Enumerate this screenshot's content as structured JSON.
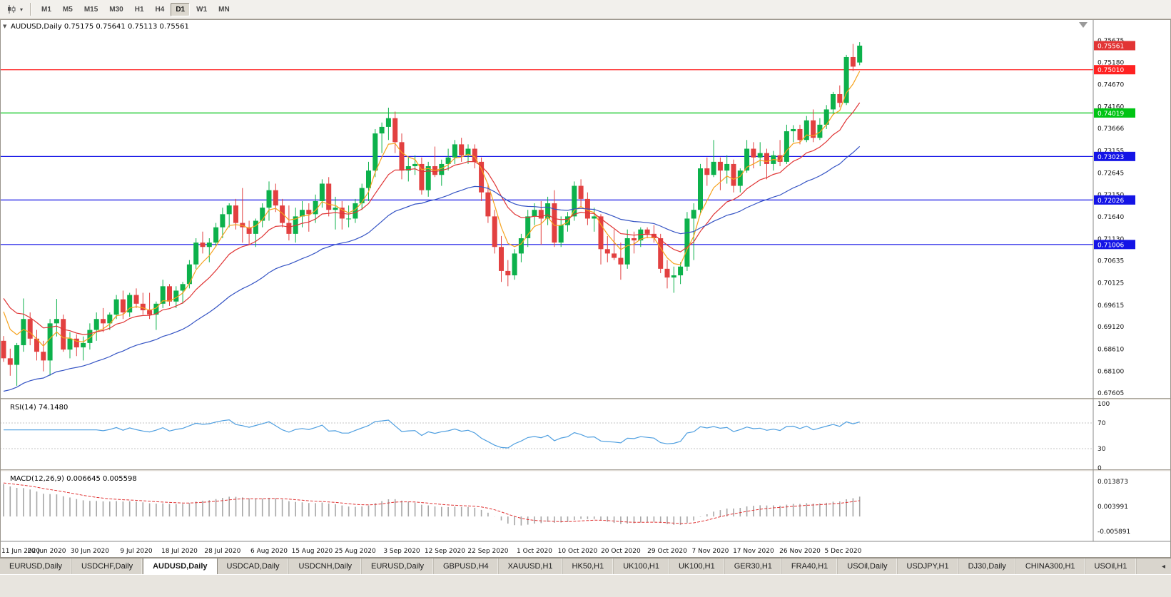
{
  "icons": {
    "caret": "▾",
    "tab_scroll_left": "◂",
    "window_caret": "▼"
  },
  "toolbar": {
    "timeframes": [
      "M1",
      "M5",
      "M15",
      "M30",
      "H1",
      "H4",
      "D1",
      "W1",
      "MN"
    ],
    "active_timeframe": "D1"
  },
  "chart_data": {
    "type": "candlestick",
    "symbol": "AUDUSD",
    "timeframe": "Daily",
    "ohlc": {
      "open": "0.75175",
      "high": "0.75641",
      "low": "0.75113",
      "close": "0.75561"
    },
    "colors": {
      "background": "#ffffff",
      "candle_up": "#0cb14b",
      "candle_down": "#e24040",
      "ma_fast": "#f6a21c",
      "ma_mid": "#e03535",
      "ma_slow": "#3453c4"
    },
    "price_range": {
      "top": 0.76149,
      "bottom": 0.67523
    },
    "price_axis": [
      "0.75675",
      "0.75180",
      "0.74670",
      "0.74160",
      "0.73666",
      "0.73155",
      "0.72645",
      "0.72150",
      "0.71640",
      "0.71130",
      "0.70635",
      "0.70125",
      "0.69615",
      "0.69120",
      "0.68610",
      "0.68100",
      "0.67605"
    ],
    "current_price": {
      "label": "0.75561",
      "value": 0.75561,
      "color": "#e23535"
    },
    "hlines": [
      {
        "label": "0.75010",
        "value": 0.7501,
        "color": "#ff2222"
      },
      {
        "label": "0.74019",
        "value": 0.74019,
        "color": "#00c414"
      },
      {
        "label": "0.73023",
        "value": 0.73023,
        "color": "#1414e6"
      },
      {
        "label": "0.72026",
        "value": 0.72026,
        "color": "#1414e6"
      },
      {
        "label": "0.71006",
        "value": 0.71006,
        "color": "#1414e6"
      }
    ],
    "moving_averages": [
      {
        "name": "fast",
        "period": 5,
        "color": "#f6a21c",
        "seed": 0.7
      },
      {
        "name": "medium",
        "period": 13,
        "color": "#e03535",
        "seed": 0.7
      },
      {
        "name": "slow",
        "period": 34,
        "color": "#3453c4",
        "seed": 0.676
      }
    ],
    "rsi": {
      "label": "RSI(14)",
      "value": "74.1480",
      "period": 14,
      "color": "#4f9fe0",
      "levels": [
        {
          "label": "100",
          "value": 100
        },
        {
          "label": "70",
          "value": 70
        },
        {
          "label": "30",
          "value": 30
        },
        {
          "label": "0",
          "value": 0
        }
      ],
      "dashed_levels": [
        70,
        30
      ]
    },
    "macd": {
      "label": "MACD(12,26,9)",
      "values": "0.006645 0.005598",
      "fast": 12,
      "slow": 26,
      "signal_period": 9,
      "fast_seed_offset": -0.0012,
      "slow_seed_offset": -0.015,
      "hist_color": "#a6a6a6",
      "signal_color": "#e03535",
      "scale_labels": [
        {
          "label": "0.013873",
          "value": 0.013873
        },
        {
          "label": "0.003991",
          "value": 0.003991
        },
        {
          "label": "-0.005891",
          "value": -0.005891
        }
      ]
    },
    "x_labels": [
      [
        "11 Jun 2020",
        0
      ],
      [
        "20 Jun 2020",
        6.5
      ],
      [
        "30 Jun 2020",
        13
      ],
      [
        "9 Jul 2020",
        20
      ],
      [
        "18 Jul 2020",
        26.5
      ],
      [
        "28 Jul 2020",
        33
      ],
      [
        "6 Aug 2020",
        40
      ],
      [
        "15 Aug 2020",
        46.5
      ],
      [
        "25 Aug 2020",
        53
      ],
      [
        "3 Sep 2020",
        60
      ],
      [
        "12 Sep 2020",
        66.5
      ],
      [
        "22 Sep 2020",
        73
      ],
      [
        "1 Oct 2020",
        80
      ],
      [
        "10 Oct 2020",
        86.5
      ],
      [
        "20 Oct 2020",
        93
      ],
      [
        "29 Oct 2020",
        100
      ],
      [
        "7 Nov 2020",
        106.5
      ],
      [
        "17 Nov 2020",
        113
      ],
      [
        "26 Nov 2020",
        120
      ],
      [
        "5 Dec 2020",
        126.5
      ]
    ],
    "candles": [
      [
        0.688,
        0.6891,
        0.6832,
        0.684
      ],
      [
        0.684,
        0.6862,
        0.68,
        0.6825
      ],
      [
        0.6825,
        0.6875,
        0.6777,
        0.687
      ],
      [
        0.687,
        0.6977,
        0.6855,
        0.693
      ],
      [
        0.693,
        0.6945,
        0.687,
        0.6885
      ],
      [
        0.6885,
        0.6905,
        0.6835,
        0.6855
      ],
      [
        0.6855,
        0.688,
        0.681,
        0.6835
      ],
      [
        0.6835,
        0.693,
        0.68,
        0.692
      ],
      [
        0.692,
        0.6976,
        0.689,
        0.693
      ],
      [
        0.693,
        0.694,
        0.6855,
        0.686
      ],
      [
        0.686,
        0.69,
        0.684,
        0.6885
      ],
      [
        0.6885,
        0.6895,
        0.6845,
        0.6865
      ],
      [
        0.6865,
        0.689,
        0.6835,
        0.6875
      ],
      [
        0.6875,
        0.692,
        0.686,
        0.6905
      ],
      [
        0.6905,
        0.6945,
        0.688,
        0.693
      ],
      [
        0.693,
        0.6955,
        0.69,
        0.692
      ],
      [
        0.692,
        0.6945,
        0.6905,
        0.694
      ],
      [
        0.694,
        0.6985,
        0.693,
        0.6975
      ],
      [
        0.6975,
        0.6995,
        0.693,
        0.6945
      ],
      [
        0.6945,
        0.699,
        0.6935,
        0.6985
      ],
      [
        0.6985,
        0.7,
        0.6955,
        0.6965
      ],
      [
        0.6965,
        0.699,
        0.694,
        0.695
      ],
      [
        0.695,
        0.699,
        0.693,
        0.694
      ],
      [
        0.694,
        0.697,
        0.6905,
        0.6965
      ],
      [
        0.6965,
        0.702,
        0.6955,
        0.7005
      ],
      [
        0.7005,
        0.701,
        0.696,
        0.697
      ],
      [
        0.697,
        0.7005,
        0.6955,
        0.6995
      ],
      [
        0.6995,
        0.7015,
        0.6965,
        0.701
      ],
      [
        0.701,
        0.7065,
        0.7,
        0.7055
      ],
      [
        0.7055,
        0.7115,
        0.7045,
        0.7105
      ],
      [
        0.7105,
        0.713,
        0.708,
        0.7095
      ],
      [
        0.7095,
        0.7115,
        0.706,
        0.7105
      ],
      [
        0.7105,
        0.715,
        0.7095,
        0.714
      ],
      [
        0.714,
        0.7185,
        0.7115,
        0.717
      ],
      [
        0.717,
        0.7195,
        0.714,
        0.719
      ],
      [
        0.719,
        0.7205,
        0.7135,
        0.715
      ],
      [
        0.715,
        0.723,
        0.7105,
        0.714
      ],
      [
        0.714,
        0.7155,
        0.71,
        0.7125
      ],
      [
        0.7125,
        0.716,
        0.7095,
        0.7155
      ],
      [
        0.7155,
        0.7195,
        0.714,
        0.7185
      ],
      [
        0.7185,
        0.7245,
        0.7155,
        0.7225
      ],
      [
        0.7225,
        0.724,
        0.7175,
        0.719
      ],
      [
        0.719,
        0.7205,
        0.714,
        0.715
      ],
      [
        0.715,
        0.719,
        0.711,
        0.7125
      ],
      [
        0.7125,
        0.7185,
        0.7105,
        0.7165
      ],
      [
        0.7165,
        0.72,
        0.714,
        0.718
      ],
      [
        0.718,
        0.7195,
        0.713,
        0.717
      ],
      [
        0.717,
        0.7215,
        0.715,
        0.72
      ],
      [
        0.72,
        0.725,
        0.7185,
        0.724
      ],
      [
        0.724,
        0.7255,
        0.7165,
        0.718
      ],
      [
        0.718,
        0.721,
        0.7135,
        0.7185
      ],
      [
        0.7185,
        0.72,
        0.7135,
        0.716
      ],
      [
        0.716,
        0.719,
        0.714,
        0.716
      ],
      [
        0.716,
        0.7205,
        0.715,
        0.7195
      ],
      [
        0.7195,
        0.724,
        0.718,
        0.723
      ],
      [
        0.723,
        0.729,
        0.72,
        0.727
      ],
      [
        0.727,
        0.7365,
        0.7255,
        0.7355
      ],
      [
        0.7355,
        0.738,
        0.731,
        0.737
      ],
      [
        0.737,
        0.7414,
        0.734,
        0.739
      ],
      [
        0.739,
        0.7405,
        0.731,
        0.7335
      ],
      [
        0.7335,
        0.7355,
        0.725,
        0.727
      ],
      [
        0.727,
        0.73,
        0.7245,
        0.728
      ],
      [
        0.728,
        0.7305,
        0.726,
        0.7285
      ],
      [
        0.7285,
        0.73,
        0.7215,
        0.7225
      ],
      [
        0.7225,
        0.729,
        0.721,
        0.728
      ],
      [
        0.728,
        0.7325,
        0.7255,
        0.726
      ],
      [
        0.726,
        0.7295,
        0.7235,
        0.7285
      ],
      [
        0.7285,
        0.732,
        0.727,
        0.73
      ],
      [
        0.73,
        0.734,
        0.7285,
        0.733
      ],
      [
        0.733,
        0.7345,
        0.729,
        0.7305
      ],
      [
        0.7305,
        0.733,
        0.7285,
        0.732
      ],
      [
        0.732,
        0.733,
        0.7275,
        0.729
      ],
      [
        0.729,
        0.73,
        0.72,
        0.722
      ],
      [
        0.722,
        0.724,
        0.715,
        0.7165
      ],
      [
        0.7165,
        0.718,
        0.708,
        0.7095
      ],
      [
        0.7095,
        0.712,
        0.7015,
        0.704
      ],
      [
        0.704,
        0.7065,
        0.7005,
        0.703
      ],
      [
        0.703,
        0.709,
        0.702,
        0.708
      ],
      [
        0.708,
        0.7125,
        0.706,
        0.7115
      ],
      [
        0.7115,
        0.718,
        0.7095,
        0.7165
      ],
      [
        0.7165,
        0.7195,
        0.7145,
        0.718
      ],
      [
        0.718,
        0.72,
        0.71,
        0.716
      ],
      [
        0.716,
        0.721,
        0.7145,
        0.7195
      ],
      [
        0.7195,
        0.7225,
        0.7095,
        0.7105
      ],
      [
        0.7105,
        0.7165,
        0.7095,
        0.7145
      ],
      [
        0.7145,
        0.7175,
        0.713,
        0.7165
      ],
      [
        0.7165,
        0.7245,
        0.7155,
        0.7235
      ],
      [
        0.7235,
        0.725,
        0.7185,
        0.7205
      ],
      [
        0.7205,
        0.722,
        0.7145,
        0.716
      ],
      [
        0.716,
        0.7185,
        0.713,
        0.7165
      ],
      [
        0.7165,
        0.717,
        0.7055,
        0.709
      ],
      [
        0.709,
        0.712,
        0.706,
        0.708
      ],
      [
        0.708,
        0.7135,
        0.7065,
        0.707
      ],
      [
        0.707,
        0.7105,
        0.702,
        0.7055
      ],
      [
        0.7055,
        0.7135,
        0.7045,
        0.7115
      ],
      [
        0.7115,
        0.713,
        0.708,
        0.711
      ],
      [
        0.711,
        0.714,
        0.7095,
        0.7135
      ],
      [
        0.7135,
        0.714,
        0.7115,
        0.7125
      ],
      [
        0.7125,
        0.7145,
        0.7105,
        0.7115
      ],
      [
        0.7115,
        0.7125,
        0.7035,
        0.7045
      ],
      [
        0.7045,
        0.7065,
        0.7,
        0.7025
      ],
      [
        0.7025,
        0.705,
        0.699,
        0.703
      ],
      [
        0.703,
        0.706,
        0.701,
        0.705
      ],
      [
        0.705,
        0.7175,
        0.704,
        0.716
      ],
      [
        0.716,
        0.7195,
        0.7065,
        0.718
      ],
      [
        0.718,
        0.7285,
        0.717,
        0.7275
      ],
      [
        0.7275,
        0.73,
        0.7235,
        0.726
      ],
      [
        0.726,
        0.734,
        0.7255,
        0.729
      ],
      [
        0.729,
        0.73,
        0.7225,
        0.727
      ],
      [
        0.727,
        0.7305,
        0.724,
        0.7285
      ],
      [
        0.7285,
        0.7295,
        0.722,
        0.7235
      ],
      [
        0.7235,
        0.7275,
        0.722,
        0.727
      ],
      [
        0.727,
        0.734,
        0.7265,
        0.732
      ],
      [
        0.732,
        0.7335,
        0.7275,
        0.73
      ],
      [
        0.73,
        0.7335,
        0.728,
        0.731
      ],
      [
        0.731,
        0.732,
        0.725,
        0.7285
      ],
      [
        0.7285,
        0.7315,
        0.727,
        0.7305
      ],
      [
        0.7305,
        0.734,
        0.728,
        0.729
      ],
      [
        0.729,
        0.7375,
        0.7285,
        0.736
      ],
      [
        0.736,
        0.7374,
        0.7335,
        0.7365
      ],
      [
        0.7365,
        0.7375,
        0.733,
        0.734
      ],
      [
        0.734,
        0.7395,
        0.7335,
        0.7385
      ],
      [
        0.7385,
        0.741,
        0.7335,
        0.7345
      ],
      [
        0.7345,
        0.739,
        0.734,
        0.7375
      ],
      [
        0.7375,
        0.742,
        0.7365,
        0.741
      ],
      [
        0.741,
        0.745,
        0.74,
        0.7445
      ],
      [
        0.7445,
        0.7465,
        0.7415,
        0.7425
      ],
      [
        0.7425,
        0.7535,
        0.742,
        0.753
      ],
      [
        0.753,
        0.756,
        0.7498,
        0.7508
      ],
      [
        0.75175,
        0.75641,
        0.75113,
        0.75561
      ]
    ]
  },
  "tabs": {
    "active_index": 2,
    "items": [
      "EURUSD,Daily",
      "USDCHF,Daily",
      "AUDUSD,Daily",
      "USDCAD,Daily",
      "USDCNH,Daily",
      "EURUSD,Daily",
      "GBPUSD,H4",
      "XAUUSD,H1",
      "HK50,H1",
      "UK100,H1",
      "UK100,H1",
      "GER30,H1",
      "FRA40,H1",
      "USOil,Daily",
      "USDJPY,H1",
      "DJ30,Daily",
      "CHINA300,H1",
      "USOil,H1"
    ]
  }
}
